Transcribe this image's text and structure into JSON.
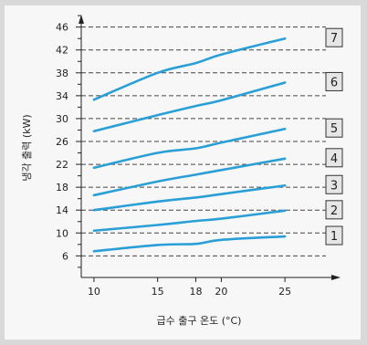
{
  "chart_data": {
    "type": "line",
    "xlabel": "급수 출구 온도  (°C)",
    "ylabel": "냉각 출력  (kW)",
    "x_ticks": [
      10,
      15,
      18,
      20,
      25
    ],
    "y_ticks": [
      6,
      10,
      14,
      18,
      22,
      26,
      30,
      34,
      38,
      42,
      46
    ],
    "xlim": [
      9,
      27
    ],
    "ylim": [
      3.5,
      48.5
    ],
    "grid": "horizontal dashed at major ticks",
    "line_color": "#2a9fd6",
    "series": [
      {
        "name": "1",
        "x": [
          10,
          15,
          18,
          20,
          25
        ],
        "y": [
          6.8,
          7.9,
          8.1,
          8.8,
          9.4
        ]
      },
      {
        "name": "2",
        "x": [
          10,
          15,
          18,
          20,
          25
        ],
        "y": [
          10.4,
          11.4,
          12.1,
          12.5,
          13.9
        ]
      },
      {
        "name": "3",
        "x": [
          10,
          15,
          18,
          20,
          25
        ],
        "y": [
          14.0,
          15.5,
          16.2,
          16.8,
          18.3
        ]
      },
      {
        "name": "4",
        "x": [
          10,
          15,
          18,
          20,
          25
        ],
        "y": [
          16.6,
          19.0,
          20.2,
          21.0,
          23.0
        ]
      },
      {
        "name": "5",
        "x": [
          10,
          15,
          18,
          20,
          25
        ],
        "y": [
          21.4,
          24.0,
          24.8,
          25.8,
          28.2
        ]
      },
      {
        "name": "6",
        "x": [
          10,
          15,
          18,
          20,
          25
        ],
        "y": [
          27.8,
          30.6,
          32.2,
          33.2,
          36.3
        ]
      },
      {
        "name": "7",
        "x": [
          10,
          15,
          18,
          20,
          25
        ],
        "y": [
          33.3,
          38.0,
          39.7,
          41.2,
          44.0
        ]
      }
    ]
  }
}
